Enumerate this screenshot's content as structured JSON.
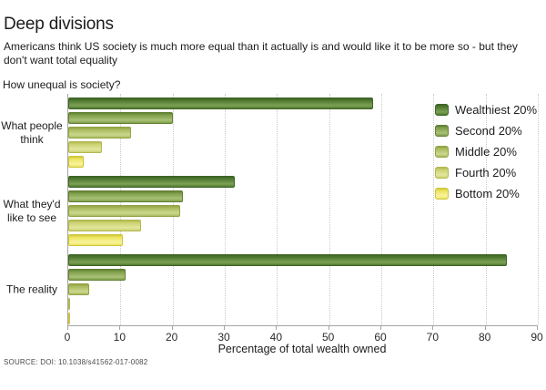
{
  "header": {
    "title": "Deep divisions",
    "subtitle": "Americans think US society is much more equal than it actually is and would like it to be more so - but they don't want total equality",
    "question": "How unequal is society?"
  },
  "chart_data": {
    "type": "bar",
    "orientation": "horizontal",
    "title": "How unequal is society?",
    "categories": [
      "What people\nthink",
      "What they'd\nlike to see",
      "The reality"
    ],
    "series": [
      {
        "name": "Wealthiest 20%",
        "values": [
          58.5,
          32,
          84
        ],
        "colors": {
          "dark": "#3e6425",
          "base": "#4f7a31",
          "light": "#7da155"
        }
      },
      {
        "name": "Second 20%",
        "values": [
          20,
          22,
          11
        ],
        "colors": {
          "dark": "#627f35",
          "base": "#7fa04a",
          "light": "#a9c077"
        }
      },
      {
        "name": "Middle 20%",
        "values": [
          12,
          21.5,
          4
        ],
        "colors": {
          "dark": "#93a344",
          "base": "#a9bc60",
          "light": "#ccd78d"
        }
      },
      {
        "name": "Fourth 20%",
        "values": [
          6.5,
          14,
          0.2
        ],
        "colors": {
          "dark": "#b3b851",
          "base": "#cbd271",
          "light": "#e3e69e"
        }
      },
      {
        "name": "Bottom 20%",
        "values": [
          3,
          10.5,
          0.1
        ],
        "colors": {
          "dark": "#d0c53e",
          "base": "#ede65e",
          "light": "#f8f29e"
        }
      }
    ],
    "xlabel": "Percentage of total wealth owned",
    "xlim": [
      0,
      90
    ],
    "xticks": [
      0,
      10,
      20,
      30,
      40,
      50,
      60,
      70,
      80,
      90
    ],
    "grid": "vertical-dotted",
    "legend_position": "top-right",
    "axis_color": "#a5a5a5",
    "grid_color": "#c9c9c9"
  },
  "source": "SOURCE: DOI: 10.1038/s41562-017-0082"
}
